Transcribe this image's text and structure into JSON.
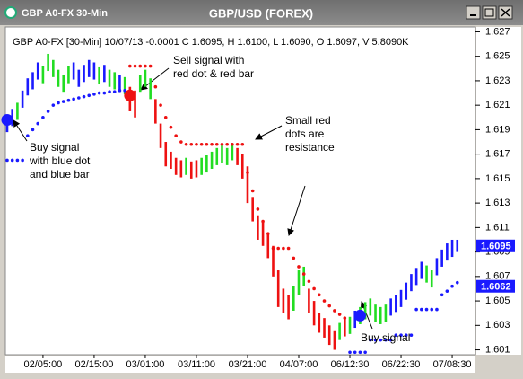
{
  "window_title": "GBP A0-FX 30-Min",
  "chart_data": {
    "type": "ohlc",
    "title": "GBP/USD (FOREX)",
    "header": "GBP A0-FX [30-Min] 10/07/13  -0.0001 C 1.6095, H 1.6100, L 1.6090, O 1.6097, V 5.8090K",
    "x": [
      0,
      1,
      2,
      3,
      4,
      5,
      6,
      7,
      8,
      9,
      10,
      11,
      12,
      13,
      14,
      15,
      16,
      17,
      18,
      19,
      20,
      21,
      22,
      23,
      24,
      25,
      26,
      27,
      28,
      29,
      30,
      31,
      32,
      33,
      34,
      35,
      36,
      37,
      38,
      39,
      40,
      41,
      42,
      43,
      44,
      45,
      46,
      47,
      48,
      49,
      50,
      51,
      52,
      53,
      54,
      55,
      56,
      57,
      58,
      59,
      60,
      61,
      62,
      63,
      64,
      65,
      66,
      67,
      68,
      69,
      70,
      71,
      72,
      73,
      74,
      75,
      76,
      77,
      78,
      79,
      80,
      81,
      82,
      83,
      84,
      85,
      86,
      87,
      88
    ],
    "high": [
      1.6202,
      1.6207,
      1.6212,
      1.6222,
      1.6232,
      1.6237,
      1.6245,
      1.6242,
      1.6252,
      1.6247,
      1.6239,
      1.6235,
      1.6242,
      1.6245,
      1.6239,
      1.6243,
      1.6247,
      1.6245,
      1.6241,
      1.6243,
      1.6239,
      1.6237,
      1.6235,
      1.6233,
      1.6225,
      1.6222,
      1.6235,
      1.6239,
      1.6232,
      1.6215,
      1.6195,
      1.618,
      1.6172,
      1.6167,
      1.6165,
      1.6167,
      1.6164,
      1.6165,
      1.6167,
      1.6169,
      1.6172,
      1.6175,
      1.6177,
      1.6175,
      1.6179,
      1.6175,
      1.617,
      1.616,
      1.6135,
      1.612,
      1.6115,
      1.6105,
      1.6095,
      1.6075,
      1.606,
      1.6055,
      1.6062,
      1.6075,
      1.6078,
      1.606,
      1.605,
      1.604,
      1.6036,
      1.603,
      1.6026,
      1.6032,
      1.6035,
      1.6037,
      1.6042,
      1.6045,
      1.6049,
      1.6052,
      1.6047,
      1.6045,
      1.6047,
      1.6052,
      1.6055,
      1.6059,
      1.6065,
      1.6072,
      1.6077,
      1.6082,
      1.6079,
      1.6075,
      1.6085,
      1.6092,
      1.6097,
      1.61,
      1.61
    ],
    "low": [
      1.6188,
      1.6193,
      1.6198,
      1.6208,
      1.6218,
      1.6223,
      1.6231,
      1.6228,
      1.6238,
      1.6233,
      1.6225,
      1.6221,
      1.6228,
      1.6231,
      1.6225,
      1.6229,
      1.6233,
      1.6231,
      1.6227,
      1.6229,
      1.6225,
      1.6223,
      1.6221,
      1.6219,
      1.6205,
      1.62,
      1.6221,
      1.6225,
      1.6215,
      1.6195,
      1.6175,
      1.616,
      1.6158,
      1.6153,
      1.6151,
      1.6153,
      1.615,
      1.6151,
      1.6153,
      1.6155,
      1.6158,
      1.6161,
      1.6163,
      1.6161,
      1.6165,
      1.6161,
      1.615,
      1.613,
      1.6115,
      1.61,
      1.6095,
      1.6085,
      1.607,
      1.6045,
      1.604,
      1.6035,
      1.6042,
      1.6055,
      1.6062,
      1.604,
      1.603,
      1.6024,
      1.602,
      1.6014,
      1.601,
      1.6018,
      1.6021,
      1.6023,
      1.6028,
      1.6031,
      1.6035,
      1.6038,
      1.6033,
      1.6031,
      1.6033,
      1.6038,
      1.6041,
      1.6045,
      1.6051,
      1.6058,
      1.6063,
      1.6068,
      1.6065,
      1.6061,
      1.6071,
      1.6078,
      1.6083,
      1.6086,
      1.609
    ],
    "bar_colors": [
      "#1a1aff",
      "#1a1aff",
      "#22dd22",
      "#1a1aff",
      "#1a1aff",
      "#1a1aff",
      "#1a1aff",
      "#22dd22",
      "#22dd22",
      "#22dd22",
      "#22dd22",
      "#22dd22",
      "#22dd22",
      "#1a1aff",
      "#1a1aff",
      "#1a1aff",
      "#1a1aff",
      "#1a1aff",
      "#22dd22",
      "#1a1aff",
      "#22dd22",
      "#22dd22",
      "#1a1aff",
      "#22dd22",
      "#ee1111",
      "#ee1111",
      "#22dd22",
      "#22dd22",
      "#22dd22",
      "#ee1111",
      "#ee1111",
      "#ee1111",
      "#ee1111",
      "#ee1111",
      "#ee1111",
      "#22dd22",
      "#ee1111",
      "#ee1111",
      "#22dd22",
      "#22dd22",
      "#22dd22",
      "#22dd22",
      "#22dd22",
      "#22dd22",
      "#22dd22",
      "#ee1111",
      "#ee1111",
      "#ee1111",
      "#ee1111",
      "#ee1111",
      "#ee1111",
      "#ee1111",
      "#ee1111",
      "#ee1111",
      "#ee1111",
      "#ee1111",
      "#22dd22",
      "#22dd22",
      "#22dd22",
      "#ee1111",
      "#ee1111",
      "#ee1111",
      "#ee1111",
      "#ee1111",
      "#ee1111",
      "#22dd22",
      "#ee1111",
      "#22dd22",
      "#1a1aff",
      "#22dd22",
      "#22dd22",
      "#22dd22",
      "#22dd22",
      "#22dd22",
      "#22dd22",
      "#1a1aff",
      "#1a1aff",
      "#1a1aff",
      "#1a1aff",
      "#1a1aff",
      "#1a1aff",
      "#1a1aff",
      "#22dd22",
      "#22dd22",
      "#1a1aff",
      "#1a1aff",
      "#1a1aff",
      "#1a1aff",
      "#1a1aff"
    ],
    "stops": [
      {
        "color": "#1a1aff",
        "values": [
          1.6165,
          1.6165,
          1.6165,
          1.6165,
          1.6185,
          1.619,
          1.6195,
          1.62,
          1.6205,
          1.621,
          1.6212,
          1.6213,
          1.6214,
          1.6215,
          1.6216,
          1.6217,
          1.6218,
          1.6219,
          1.622,
          1.622,
          1.6221,
          1.6221,
          1.6222,
          1.6222,
          null,
          null,
          null,
          null,
          null,
          null,
          null,
          null,
          null,
          null,
          null,
          null,
          null,
          null,
          null,
          null,
          null,
          null,
          null,
          null,
          null,
          null,
          null,
          null,
          null,
          null,
          null,
          null,
          null,
          null,
          null,
          null,
          null,
          null,
          null,
          null,
          null,
          null,
          null,
          null,
          null,
          null,
          null,
          1.6008,
          1.6008,
          1.6008,
          1.6008,
          1.6018,
          1.6018,
          1.6018,
          1.6018,
          1.6018,
          1.6022,
          1.6022,
          1.6022,
          1.6022,
          1.6043,
          1.6043,
          1.6043,
          1.6043,
          1.6043,
          1.6055,
          1.6058,
          1.6062,
          1.6065
        ]
      },
      {
        "color": "#ee1111",
        "values": [
          null,
          null,
          null,
          null,
          null,
          null,
          null,
          null,
          null,
          null,
          null,
          null,
          null,
          null,
          null,
          null,
          null,
          null,
          null,
          null,
          null,
          null,
          null,
          null,
          1.6242,
          1.6242,
          1.6242,
          1.6242,
          1.6242,
          1.6225,
          1.621,
          1.62,
          1.6192,
          1.6185,
          1.618,
          1.6178,
          1.6178,
          1.6178,
          1.6178,
          1.6178,
          1.6178,
          1.6178,
          1.6178,
          1.6178,
          1.6178,
          1.6178,
          1.6178,
          1.6155,
          1.614,
          1.6125,
          1.6115,
          1.6105,
          1.6093,
          1.6093,
          1.6093,
          1.6093,
          1.6085,
          1.6078,
          1.6072,
          1.6066,
          1.606,
          1.6055,
          1.605,
          1.6046,
          1.6042,
          1.6039,
          1.6036,
          null,
          null,
          null,
          null,
          null,
          null,
          null,
          null,
          null,
          null,
          null,
          null,
          null,
          null,
          null,
          null,
          null,
          null,
          null,
          null,
          null,
          null
        ]
      }
    ],
    "signals": [
      {
        "x": 0,
        "value": 1.6198,
        "color": "#1a1aff"
      },
      {
        "x": 24,
        "value": 1.6218,
        "color": "#ee1111"
      },
      {
        "x": 69,
        "value": 1.6038,
        "color": "#1a1aff"
      }
    ],
    "price_labels": [
      1.6095,
      1.6062
    ],
    "price_label_color": "#1a1aff",
    "annotations": [
      [
        "Buy signal",
        "with blue dot",
        "and blue bar"
      ],
      [
        "Sell signal with",
        "red dot & red bar"
      ],
      [
        "Small red",
        "dots are",
        "resistance"
      ],
      [
        "Buy signal"
      ]
    ],
    "xlim": [
      0,
      91.2
    ],
    "ylim": [
      1.6006,
      1.6274
    ],
    "yticks": [
      1.627,
      1.625,
      1.623,
      1.621,
      1.619,
      1.617,
      1.615,
      1.613,
      1.611,
      1.609,
      1.607,
      1.605,
      1.603,
      1.601
    ],
    "xticks": [
      {
        "value": 7,
        "label": "02/05:00"
      },
      {
        "value": 17,
        "label": "02/15:00"
      },
      {
        "value": 27,
        "label": "03/01:00"
      },
      {
        "value": 37,
        "label": "03/11:00"
      },
      {
        "value": 47,
        "label": "03/21:00"
      },
      {
        "value": 57,
        "label": "04/07:00"
      },
      {
        "value": 67,
        "label": "06/12:30"
      },
      {
        "value": 77,
        "label": "06/22:30"
      },
      {
        "value": 87,
        "label": "07/08:30"
      }
    ]
  }
}
